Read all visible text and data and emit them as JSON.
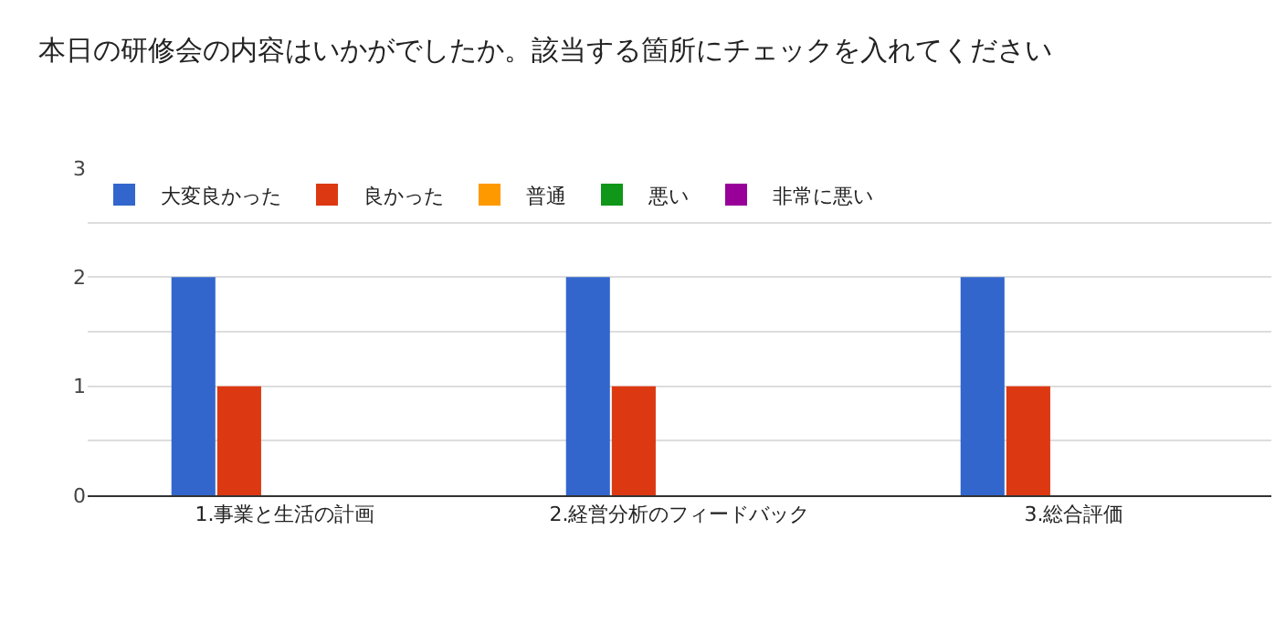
{
  "chart_data": {
    "type": "bar",
    "title": "本日の研修会の内容はいかがでしたか。該当する箇所にチェックを入れてください",
    "categories": [
      "1.事業と生活の計画",
      "2.経営分析のフィードバック",
      "3.総合評価"
    ],
    "series": [
      {
        "name": "大変良かった",
        "color": "#3366cc",
        "values": [
          2,
          2,
          2
        ]
      },
      {
        "name": "良かった",
        "color": "#dc3912",
        "values": [
          1,
          1,
          1
        ]
      },
      {
        "name": "普通",
        "color": "#ff9900",
        "values": [
          0,
          0,
          0
        ]
      },
      {
        "name": "悪い",
        "color": "#109618",
        "values": [
          0,
          0,
          0
        ]
      },
      {
        "name": "非常に悪い",
        "color": "#990099",
        "values": [
          0,
          0,
          0
        ]
      }
    ],
    "ylim": [
      0,
      3
    ],
    "yticks": [
      0,
      {
        "value": 0.5,
        "label": null
      },
      1,
      {
        "value": 1.5,
        "label": null
      },
      2,
      {
        "value": 2.5,
        "label": null
      },
      3
    ],
    "grid": "y",
    "legend": "top left"
  }
}
